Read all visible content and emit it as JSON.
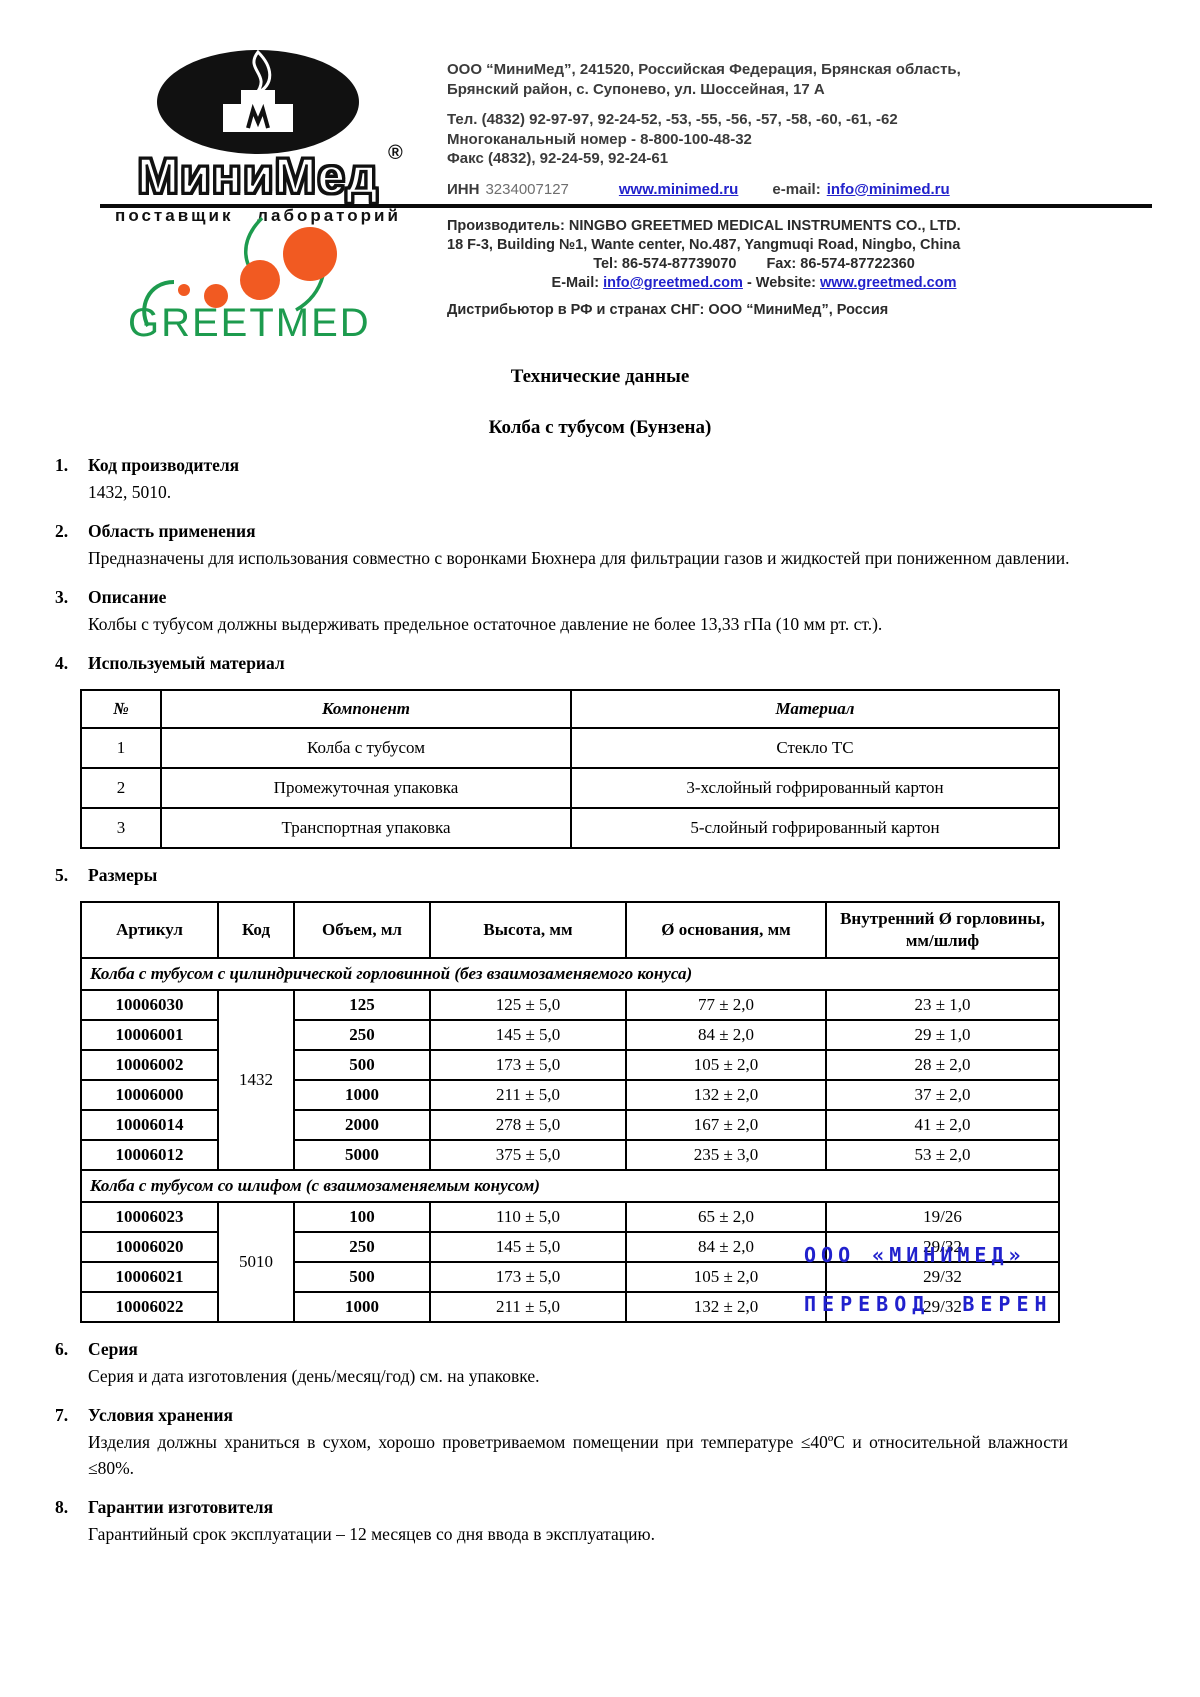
{
  "colors": {
    "link_blue": "#2222cc",
    "stamp_blue": "#2121cd",
    "greetmed_green": "#1d9b4e",
    "greetmed_orange": "#f15a22"
  },
  "header": {
    "logo": {
      "brand": "МиниМед",
      "registered": "®",
      "tagline": "поставщик лабораторий"
    },
    "company": {
      "line1": "ООО “МиниМед”, 241520, Российская Федерация, Брянская область,",
      "line2": "Брянский район,  с. Супонево, ул. Шоссейная, 17 А",
      "phone1": "Тел. (4832) 92-97-97, 92-24-52, -53, -55, -56, -57, -58, -60, -61, -62",
      "phone2": "Многоканальный номер - 8-800-100-48-32",
      "fax": "Факс (4832), 92-24-59, 92-24-61",
      "inn_label": "ИНН",
      "inn": "3234007127",
      "website": "www.minimed.ru",
      "email_label": "e-mail:",
      "email": "info@minimed.ru"
    },
    "greetmed_logo_text": "GREETMED",
    "manufacturer": {
      "line1": "Производитель: NINGBO GREETMED MEDICAL INSTRUMENTS CO., LTD.",
      "line2": "18 F-3, Building №1, Wante center, No.487, Yangmuqi Road, Ningbo, China",
      "tel": "Tel: 86-574-87739070",
      "fax": "Fax: 86-574-87722360",
      "email_label": "E-Mail:",
      "email": "info@greetmed.com",
      "website_sep": "- Website:",
      "website": "www.greetmed.com",
      "distributor": "Дистрибьютор в РФ и странах СНГ: ООО “МиниМед”, Россия"
    }
  },
  "title": "Технические данные",
  "subtitle": "Колба с тубусом (Бунзена)",
  "sections": {
    "s1": {
      "num": "1.",
      "title": "Код производителя",
      "body": "1432, 5010."
    },
    "s2": {
      "num": "2.",
      "title": "Область применения",
      "body": "Предназначены для использования совместно с воронками Бюхнера для фильтрации газов и жидкостей при пониженном давлении."
    },
    "s3": {
      "num": "3.",
      "title": "Описание",
      "body": "Колбы с тубусом должны выдерживать предельное остаточное давление не более 13,33 гПа (10 мм рт. ст.)."
    },
    "s4": {
      "num": "4.",
      "title": "Используемый материал"
    },
    "s5": {
      "num": "5.",
      "title": "Размеры"
    },
    "s6": {
      "num": "6.",
      "title": "Серия",
      "body": "Серия и дата изготовления (день/месяц/год) см. на упаковке."
    },
    "s7": {
      "num": "7.",
      "title": "Условия хранения",
      "body": "Изделия должны храниться в сухом, хорошо проветриваемом помещении при температуре ≤40ºС и относительной влажности ≤80%."
    },
    "s8": {
      "num": "8.",
      "title": "Гарантии изготовителя",
      "body": "Гарантийный срок эксплуатации – 12 месяцев со дня ввода в эксплуатацию."
    }
  },
  "materials_table": {
    "headers": [
      "№",
      "Компонент",
      "Материал"
    ],
    "rows": [
      [
        "1",
        "Колба с тубусом",
        "Стекло ТС"
      ],
      [
        "2",
        "Промежуточная упаковка",
        "3-хслойный гофрированный картон"
      ],
      [
        "3",
        "Транспортная упаковка",
        "5-слойный гофрированный картон"
      ]
    ]
  },
  "dimensions_table": {
    "headers": [
      "Артикул",
      "Код",
      "Объем, мл",
      "Высота, мм",
      "Ø основания, мм",
      "Внутренний Ø горловины, мм/шлиф"
    ],
    "groups": [
      {
        "title": "Колба с тубусом с цилиндрической горловинной (без взаимозаменяемого конуса)",
        "code": "1432",
        "rows": [
          [
            "10006030",
            "125",
            "125 ± 5,0",
            "77 ± 2,0",
            "23 ± 1,0"
          ],
          [
            "10006001",
            "250",
            "145 ± 5,0",
            "84 ± 2,0",
            "29 ± 1,0"
          ],
          [
            "10006002",
            "500",
            "173 ± 5,0",
            "105 ± 2,0",
            "28 ± 2,0"
          ],
          [
            "10006000",
            "1000",
            "211 ± 5,0",
            "132 ± 2,0",
            "37 ± 2,0"
          ],
          [
            "10006014",
            "2000",
            "278 ± 5,0",
            "167 ± 2,0",
            "41 ± 2,0"
          ],
          [
            "10006012",
            "5000",
            "375 ± 5,0",
            "235 ± 3,0",
            "53 ± 2,0"
          ]
        ]
      },
      {
        "title": "Колба с тубусом со шлифом (с взаимозаменяемым конусом)",
        "code": "5010",
        "rows": [
          [
            "10006023",
            "100",
            "110 ± 5,0",
            "65 ± 2,0",
            "19/26"
          ],
          [
            "10006020",
            "250",
            "145 ± 5,0",
            "84 ± 2,0",
            "29/32"
          ],
          [
            "10006021",
            "500",
            "173 ± 5,0",
            "105 ± 2,0",
            "29/32"
          ],
          [
            "10006022",
            "1000",
            "211 ± 5,0",
            "132 ± 2,0",
            "29/32"
          ]
        ]
      }
    ]
  },
  "stamp": {
    "line1": "ООО «МИНИМЕД»",
    "line2": "ПЕРЕВОД ВЕРЕН"
  }
}
